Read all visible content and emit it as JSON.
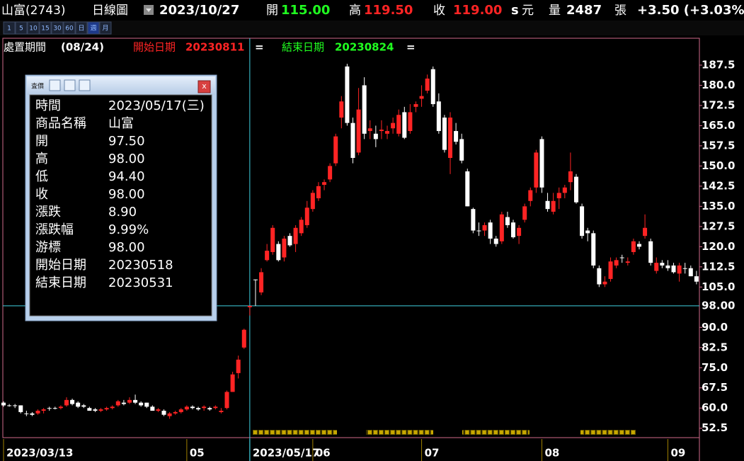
{
  "header": {
    "name": "山富(2743)",
    "view": "日線圖",
    "date": "2023/10/27",
    "open_label": "開",
    "open": "115.00",
    "high_label": "高",
    "high": "119.50",
    "close_label": "收",
    "close": "119.00",
    "s": "s",
    "unit": "元",
    "volume_label": "量",
    "volume": "2487",
    "volume_unit": "張",
    "change": "+3.50 (+3.03%"
  },
  "toolbar": [
    "1",
    "5",
    "10",
    "15",
    "30",
    "60",
    "日",
    "週",
    "月"
  ],
  "legend": {
    "period_label": "處置期間",
    "period": "(08/24)",
    "start_label": "開始日期",
    "start": "20230811",
    "start_eq": "=",
    "end_label": "結束日期",
    "end": "20230824",
    "end_eq": "="
  },
  "info_panel": {
    "title": "査價",
    "close": "x",
    "rows": [
      [
        "時間",
        "2023/05/17(三)"
      ],
      [
        "商品名稱",
        "山富"
      ],
      [
        "開",
        "97.50"
      ],
      [
        "高",
        "98.00"
      ],
      [
        "低",
        "94.40"
      ],
      [
        "收",
        "98.00"
      ],
      [
        "漲跌",
        "8.90"
      ],
      [
        "漲跌幅",
        "9.99%"
      ],
      [
        "游標",
        "98.00"
      ],
      [
        "開始日期",
        "20230518"
      ],
      [
        "結束日期",
        "20230531"
      ]
    ]
  },
  "chart_data": {
    "type": "candlestick",
    "up_color": "#ff2424",
    "down_color": "#ffffff",
    "ylim": [
      49,
      197.5
    ],
    "yticks": [
      52.5,
      {
        "value": 60,
        "label": "60.0"
      },
      67.5,
      {
        "value": 75,
        "label": "75.0"
      },
      82.5,
      {
        "value": 90,
        "label": "90.0"
      },
      {
        "value": 105,
        "label": "105.0"
      },
      112.5,
      {
        "value": 120,
        "label": "120.0"
      },
      127.5,
      {
        "value": 135,
        "label": "135.0"
      },
      142.5,
      {
        "value": 150,
        "label": "150.0"
      },
      157.5,
      {
        "value": 165,
        "label": "165.0"
      },
      172.5,
      {
        "value": 180,
        "label": "180.0"
      },
      187.5
    ],
    "cursor": {
      "y": {
        "value": 98,
        "label": "98.00"
      }
    },
    "categories": [
      "2023/03/13",
      null,
      null,
      null,
      null,
      null,
      null,
      null,
      null,
      null,
      null,
      null,
      null,
      null,
      null,
      null,
      null,
      null,
      null,
      null,
      null,
      null,
      null,
      null,
      null,
      null,
      null,
      null,
      null,
      null,
      null,
      null,
      "05",
      null,
      null,
      null,
      null,
      null,
      null,
      null,
      null,
      null,
      null,
      "2023/05/17",
      null,
      null,
      null,
      null,
      null,
      null,
      null,
      null,
      null,
      null,
      "06",
      null,
      null,
      null,
      null,
      null,
      null,
      null,
      null,
      null,
      null,
      null,
      null,
      null,
      null,
      null,
      null,
      null,
      null,
      "07",
      null,
      null,
      null,
      null,
      null,
      null,
      null,
      null,
      null,
      null,
      null,
      null,
      null,
      null,
      null,
      null,
      null,
      null,
      null,
      null,
      "08",
      null,
      null,
      null,
      null,
      null,
      null,
      null,
      null,
      null,
      null,
      null,
      null,
      null,
      null,
      null,
      null,
      null,
      null,
      null,
      null,
      null,
      "09",
      null,
      null,
      null,
      null,
      null
    ],
    "ohlc": [
      [
        62,
        62.5,
        60.5,
        61
      ],
      [
        61,
        61.5,
        60.5,
        61
      ],
      [
        61,
        61.5,
        60,
        61
      ],
      [
        61,
        61,
        58,
        58.5
      ],
      [
        58,
        59,
        57,
        58
      ],
      [
        58,
        58.5,
        57,
        57.5
      ],
      [
        58,
        59.5,
        57.5,
        59
      ],
      [
        59,
        60,
        58,
        59.5
      ],
      [
        60,
        60.5,
        59,
        60
      ],
      [
        60,
        60.5,
        59.5,
        60
      ],
      [
        60,
        61,
        59.5,
        60.5
      ],
      [
        61,
        64,
        60.5,
        63
      ],
      [
        63,
        63.5,
        61,
        61.5
      ],
      [
        62,
        62.5,
        60,
        60.5
      ],
      [
        61,
        61.5,
        60,
        60.5
      ],
      [
        60,
        60.5,
        59,
        59
      ],
      [
        59.5,
        60,
        58.5,
        59
      ],
      [
        59,
        60,
        58.5,
        59.5
      ],
      [
        59.5,
        60.5,
        59,
        60
      ],
      [
        60,
        61,
        59.5,
        60.5
      ],
      [
        61,
        63,
        60.5,
        62.5
      ],
      [
        62,
        63,
        61,
        61.5
      ],
      [
        62,
        64,
        61.5,
        63
      ],
      [
        63,
        65,
        61.5,
        62
      ],
      [
        62,
        62.5,
        60.5,
        61
      ],
      [
        62,
        62,
        60,
        60.5
      ],
      [
        60.5,
        61,
        59,
        59
      ],
      [
        59,
        60,
        58.5,
        59.5
      ],
      [
        59,
        59.5,
        57,
        57.5
      ],
      [
        57,
        58.5,
        56,
        58
      ],
      [
        58,
        59,
        57.5,
        58.5
      ],
      [
        58.5,
        60,
        58,
        59.5
      ],
      [
        59.5,
        61,
        59,
        60.5
      ],
      [
        60.5,
        61,
        59.5,
        60
      ],
      [
        60,
        60.5,
        59,
        59.5
      ],
      [
        60,
        61,
        59,
        60.5
      ],
      [
        60,
        60.5,
        59,
        59.5
      ],
      [
        60,
        61,
        59.5,
        60.5
      ],
      [
        58.5,
        60,
        58,
        59
      ],
      [
        60,
        66.5,
        59.5,
        66
      ],
      [
        66,
        73.5,
        66,
        72.5
      ],
      [
        73,
        79.5,
        71,
        78
      ],
      [
        82.5,
        89.5,
        82,
        89.1
      ],
      [
        97.5,
        98,
        94.4,
        98
      ],
      [
        107.8,
        107.8,
        98,
        107.8
      ],
      [
        103,
        112,
        102,
        110.5
      ],
      [
        115,
        121,
        114.5,
        118.5
      ],
      [
        118,
        128,
        117,
        127
      ],
      [
        121,
        122,
        114.5,
        115
      ],
      [
        116,
        124,
        114.5,
        123
      ],
      [
        124,
        125,
        120,
        120.5
      ],
      [
        121,
        128,
        118,
        127
      ],
      [
        125,
        131,
        124,
        130
      ],
      [
        128,
        137,
        127,
        134.5
      ],
      [
        134,
        141,
        133,
        140
      ],
      [
        138,
        144,
        137,
        142.5
      ],
      [
        143,
        145,
        141,
        144
      ],
      [
        145,
        151,
        144,
        150
      ],
      [
        151,
        162,
        150,
        161
      ],
      [
        168,
        176,
        164,
        174
      ],
      [
        187,
        188,
        165,
        166
      ],
      [
        166,
        168,
        151,
        153
      ],
      [
        155,
        179,
        154,
        171
      ],
      [
        180,
        183,
        160,
        162
      ],
      [
        163,
        167,
        160,
        164
      ],
      [
        162,
        165,
        157,
        160
      ],
      [
        163,
        167,
        160,
        163.5
      ],
      [
        162,
        165,
        160,
        163
      ],
      [
        164,
        168,
        162,
        166
      ],
      [
        162,
        171,
        161,
        169
      ],
      [
        170,
        172,
        160,
        160.5
      ],
      [
        163,
        173,
        162,
        170
      ],
      [
        172,
        174,
        170,
        173
      ],
      [
        175,
        180,
        172,
        176
      ],
      [
        178,
        184,
        177,
        182.5
      ],
      [
        186,
        187,
        172,
        173
      ],
      [
        174,
        177,
        162,
        163
      ],
      [
        168,
        169,
        155,
        156
      ],
      [
        153,
        170,
        147,
        168
      ],
      [
        163,
        166,
        158,
        159
      ],
      [
        160,
        162,
        151,
        152
      ],
      [
        148,
        149,
        135,
        135
      ],
      [
        134,
        134.5,
        125,
        126
      ],
      [
        126,
        129,
        124,
        126
      ],
      [
        126,
        129,
        124,
        128
      ],
      [
        129,
        130,
        121,
        123
      ],
      [
        123,
        124,
        120,
        121
      ],
      [
        122,
        133,
        121,
        132
      ],
      [
        131,
        133,
        127,
        128
      ],
      [
        129,
        130,
        123,
        123.5
      ],
      [
        124,
        128,
        121,
        127
      ],
      [
        130,
        136,
        129,
        135
      ],
      [
        137,
        142,
        135,
        141
      ],
      [
        142,
        156,
        140,
        155
      ],
      [
        160,
        161,
        140,
        142
      ],
      [
        137,
        140,
        133,
        134
      ],
      [
        133,
        140,
        132,
        137
      ],
      [
        138,
        142,
        134,
        140
      ],
      [
        140,
        143,
        138,
        142
      ],
      [
        144,
        155,
        141,
        148
      ],
      [
        146,
        147,
        136,
        136.5
      ],
      [
        135,
        136,
        123,
        124
      ],
      [
        126,
        127,
        122,
        125
      ],
      [
        125,
        126,
        112,
        113
      ],
      [
        112,
        113,
        105,
        106
      ],
      [
        106,
        109,
        105,
        107
      ],
      [
        108,
        116,
        107,
        114.5
      ],
      [
        113,
        116,
        112,
        115
      ],
      [
        116,
        117,
        114,
        116
      ],
      [
        114,
        116,
        113,
        114.5
      ],
      [
        118,
        123,
        117,
        122
      ],
      [
        121,
        122,
        119,
        120
      ],
      [
        124,
        132,
        123,
        127
      ],
      [
        122,
        123,
        113,
        114
      ],
      [
        111,
        116,
        110,
        114
      ],
      [
        114,
        115,
        112,
        113
      ],
      [
        113,
        115,
        111,
        112
      ],
      [
        113,
        114,
        110,
        110.5
      ],
      [
        110,
        114,
        107,
        113
      ],
      [
        112,
        114,
        110,
        112
      ],
      [
        112,
        113,
        109,
        109
      ],
      [
        109,
        111,
        106,
        107
      ]
    ]
  }
}
